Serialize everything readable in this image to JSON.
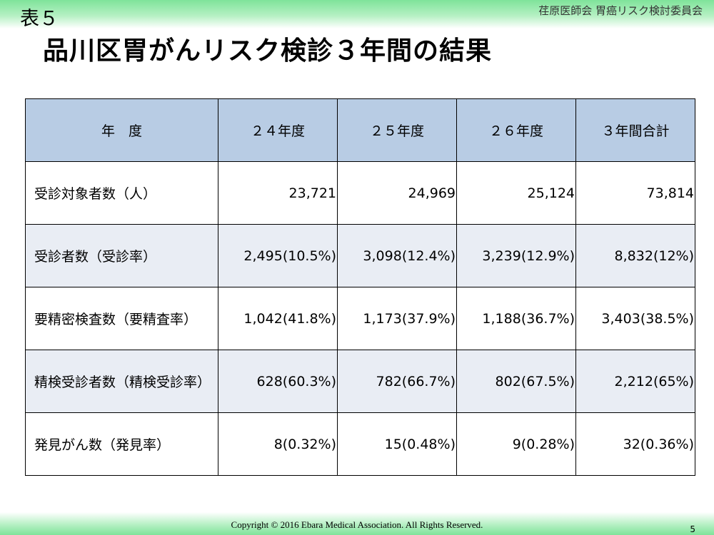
{
  "slide": {
    "table_label": "表５",
    "organization": "荏原医師会 胃癌リスク検討委員会",
    "title": "品川区胃がんリスク検診３年間の結果"
  },
  "table": {
    "headers": [
      "年　度",
      "２４年度",
      "２５年度",
      "２６年度",
      "３年間合計"
    ],
    "rows": [
      {
        "label": "受診対象者数（人）",
        "values": [
          "23,721",
          "24,969",
          "25,124",
          "73,814"
        ]
      },
      {
        "label": "受診者数（受診率）",
        "values": [
          "2,495(10.5%)",
          "3,098(12.4%)",
          "3,239(12.9%)",
          "8,832(12%)"
        ]
      },
      {
        "label": "要精密検査数（要精査率）",
        "values": [
          "1,042(41.8%)",
          "1,173(37.9%)",
          "1,188(36.7%)",
          "3,403(38.5%)"
        ]
      },
      {
        "label": "精検受診者数（精検受診率）",
        "values": [
          "628(60.3%)",
          "782(66.7%)",
          "802(67.5%)",
          "2,212(65%)"
        ]
      },
      {
        "label": "発見がん数（発見率）",
        "values": [
          "8(0.32%)",
          "15(0.48%)",
          "9(0.28%)",
          "32(0.36%)"
        ]
      }
    ]
  },
  "footer": {
    "copyright": "Copyright ©  2016 Ebara Medical Association. All Rights Reserved.",
    "page_number": "5"
  },
  "colors": {
    "header_fill": "#b8cce4",
    "alt_row_fill": "#e9edf4",
    "band_green": "#7fe39a"
  }
}
